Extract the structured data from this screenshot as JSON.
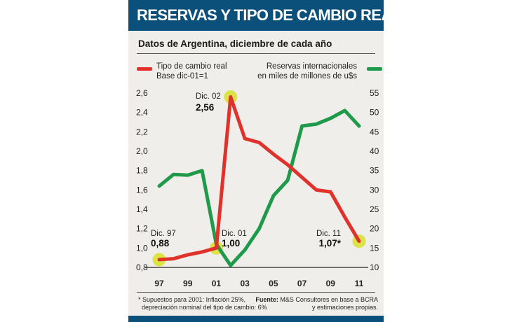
{
  "header": {
    "title": "RESERVAS Y TIPO DE CAMBIO REAL",
    "subtitle": "Datos de Argentina, diciembre de cada año"
  },
  "legend": {
    "left": {
      "line1": "Tipo de cambio real",
      "line2": "Base dic-01=1",
      "color": "#e0322b"
    },
    "right": {
      "line1": "Reservas internacionales",
      "line2": "en miles de millones de u$s",
      "color": "#1f9a4a"
    }
  },
  "footer": {
    "note_line1": "* Supuestos para 2001: Inflación 25%,",
    "note_line2": "depreciación nominal del tipo de cambio: 6%",
    "source_label": "Fuente:",
    "source_line1": "M&S Consultores en base a BCRA",
    "source_line2": "y estimaciones propias."
  },
  "chart_data": {
    "type": "line",
    "x": [
      1997,
      1998,
      1999,
      2000,
      2001,
      2002,
      2003,
      2004,
      2005,
      2006,
      2007,
      2008,
      2009,
      2010,
      2011
    ],
    "xticks": [
      1997,
      1999,
      2001,
      2003,
      2005,
      2007,
      2009,
      2011
    ],
    "xtick_labels": [
      "97",
      "99",
      "01",
      "03",
      "05",
      "07",
      "09",
      "11"
    ],
    "left_axis": {
      "ylim": [
        0.8,
        2.6
      ],
      "ticks": [
        "2,6",
        "2,4",
        "2,2",
        "2,0",
        "1,8",
        "1,6",
        "1,4",
        "1,2",
        "1,0",
        "0,8"
      ]
    },
    "right_axis": {
      "ylim": [
        10,
        55
      ],
      "ticks": [
        "55",
        "50",
        "45",
        "40",
        "35",
        "30",
        "25",
        "20",
        "15",
        "10"
      ]
    },
    "series": [
      {
        "name": "Tipo de cambio real",
        "axis": "left",
        "color": "#e0322b",
        "values": [
          0.88,
          0.89,
          0.93,
          0.96,
          1.0,
          2.56,
          2.13,
          2.09,
          1.97,
          1.86,
          1.73,
          1.6,
          1.58,
          1.32,
          1.07
        ]
      },
      {
        "name": "Reservas internacionales",
        "axis": "right",
        "color": "#1f9a4a",
        "values": [
          31,
          34,
          33.8,
          35,
          16,
          10.5,
          14.5,
          20,
          28.5,
          32.5,
          46.5,
          47,
          48.5,
          50.5,
          46.5
        ]
      }
    ],
    "annotations": [
      {
        "label": "Dic. 97",
        "value": "0,88",
        "x": 1997
      },
      {
        "label": "Dic. 01",
        "value": "1,00",
        "x": 2001
      },
      {
        "label": "Dic. 02",
        "value": "2,56",
        "x": 2002
      },
      {
        "label": "Dic. 11",
        "value": "1,07*",
        "x": 2011
      }
    ],
    "highlight_color": "#d8e02a"
  }
}
